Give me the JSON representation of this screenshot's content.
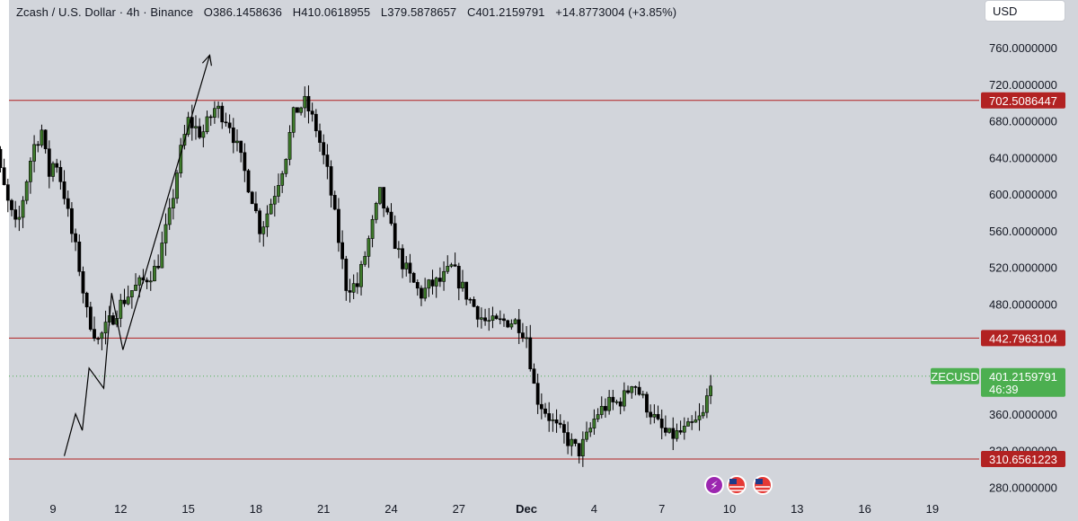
{
  "header": {
    "symbol": "Zcash / U.S. Dollar · 4h · Binance",
    "open": "O386.1458636",
    "high": "H410.0618955",
    "low": "L379.5878657",
    "close": "C401.2159791",
    "change": "+14.8773004 (+3.85%)"
  },
  "currency": "USD",
  "colors": {
    "background": "#d2d5db",
    "up_candle": "#3d7a2a",
    "down_candle": "#000000",
    "level_line": "#b22222",
    "current_price": "#4caf50",
    "projection": "#000000"
  },
  "chart_data": {
    "type": "candlestick",
    "x_tick_labels": [
      "9",
      "12",
      "15",
      "18",
      "21",
      "24",
      "27",
      "Dec",
      "4",
      "7",
      "10",
      "13",
      "16",
      "19"
    ],
    "y_tick_labels": [
      "760.0000000",
      "720.0000000",
      "680.0000000",
      "640.0000000",
      "600.0000000",
      "560.0000000",
      "520.0000000",
      "480.0000000",
      "360.0000000",
      "320.0000000",
      "280.0000000"
    ],
    "ylim": [
      270,
      785
    ],
    "price_levels": [
      {
        "value": 702.5086447,
        "label": "702.5086447"
      },
      {
        "value": 442.7963104,
        "label": "442.7963104"
      },
      {
        "value": 310.6561223,
        "label": "310.6561223"
      }
    ],
    "current_price": {
      "symbol": "ZECUSD",
      "value": 401.2159791,
      "label": "401.2159791",
      "countdown": "46:39"
    },
    "projection_path": [
      [
        9.5,
        314
      ],
      [
        10.0,
        360
      ],
      [
        10.3,
        342
      ],
      [
        10.6,
        410
      ],
      [
        11.25,
        388
      ],
      [
        11.6,
        492
      ],
      [
        12.1,
        430
      ],
      [
        15.95,
        752
      ]
    ],
    "candle_anchor_path": [
      [
        6.0,
        640
      ],
      [
        6.3,
        685
      ],
      [
        6.6,
        630
      ],
      [
        7.0,
        590
      ],
      [
        7.4,
        560
      ],
      [
        7.7,
        600
      ],
      [
        8.1,
        650
      ],
      [
        8.5,
        670
      ],
      [
        8.8,
        620
      ],
      [
        9.1,
        640
      ],
      [
        9.5,
        600
      ],
      [
        9.8,
        560
      ],
      [
        10.1,
        530
      ],
      [
        10.5,
        470
      ],
      [
        11.0,
        440
      ],
      [
        11.5,
        460
      ],
      [
        12.0,
        480
      ],
      [
        12.5,
        495
      ],
      [
        13.0,
        505
      ],
      [
        13.6,
        520
      ],
      [
        14.2,
        580
      ],
      [
        14.6,
        640
      ],
      [
        15.0,
        680
      ],
      [
        15.6,
        665
      ],
      [
        16.2,
        695
      ],
      [
        16.8,
        680
      ],
      [
        17.3,
        640
      ],
      [
        17.8,
        600
      ],
      [
        18.2,
        560
      ],
      [
        18.8,
        600
      ],
      [
        19.3,
        640
      ],
      [
        19.7,
        690
      ],
      [
        20.2,
        700
      ],
      [
        20.7,
        670
      ],
      [
        21.2,
        620
      ],
      [
        21.6,
        560
      ],
      [
        22.0,
        500
      ],
      [
        22.5,
        500
      ],
      [
        23.0,
        550
      ],
      [
        23.5,
        600
      ],
      [
        24.0,
        560
      ],
      [
        24.4,
        530
      ],
      [
        24.8,
        510
      ],
      [
        25.3,
        490
      ],
      [
        25.7,
        500
      ],
      [
        26.2,
        505
      ],
      [
        26.7,
        520
      ],
      [
        27.1,
        500
      ],
      [
        27.6,
        480
      ],
      [
        28.1,
        462
      ],
      [
        28.6,
        458
      ],
      [
        29.1,
        462
      ],
      [
        29.6,
        460
      ],
      [
        30.0,
        445
      ],
      [
        30.4,
        380
      ],
      [
        30.8,
        365
      ],
      [
        31.3,
        345
      ],
      [
        31.7,
        335
      ],
      [
        32.3,
        318
      ],
      [
        32.7,
        335
      ],
      [
        33.1,
        360
      ],
      [
        33.6,
        370
      ],
      [
        34.0,
        372
      ],
      [
        34.4,
        380
      ],
      [
        34.7,
        398
      ],
      [
        35.1,
        378
      ],
      [
        35.5,
        362
      ],
      [
        35.9,
        345
      ],
      [
        36.3,
        335
      ],
      [
        36.7,
        338
      ],
      [
        37.1,
        342
      ],
      [
        37.5,
        350
      ],
      [
        37.9,
        360
      ],
      [
        38.1,
        395
      ],
      [
        38.2,
        401
      ]
    ]
  }
}
